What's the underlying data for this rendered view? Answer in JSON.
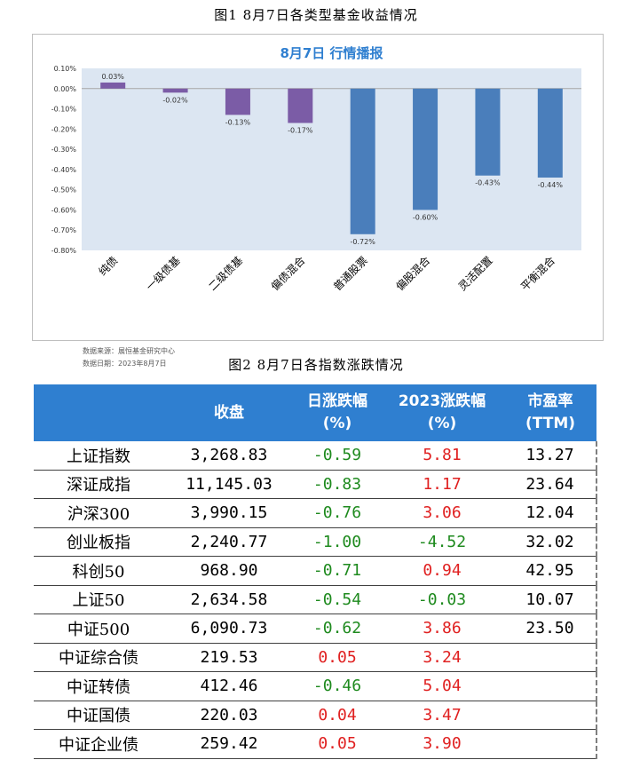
{
  "figure1": {
    "caption": "图1  8月7日各类型基金收益情况",
    "source_line1": "数据来源：展恒基金研究中心",
    "source_line2": "数据日期：2023年8月7日"
  },
  "chart_data": {
    "type": "bar",
    "title": "8月7日  行情播报",
    "categories": [
      "纯债",
      "一级债基",
      "二级债基",
      "偏债混合",
      "普通股票",
      "偏股混合",
      "灵活配置",
      "平衡混合"
    ],
    "values": [
      0.03,
      -0.02,
      -0.13,
      -0.17,
      -0.72,
      -0.6,
      -0.43,
      -0.44
    ],
    "value_labels": [
      "0.03%",
      "-0.02%",
      "-0.13%",
      "-0.17%",
      "-0.72%",
      "-0.60%",
      "-0.43%",
      "-0.44%"
    ],
    "bar_colors": [
      "#7b5ca6",
      "#7b5ca6",
      "#7b5ca6",
      "#7b5ca6",
      "#4a7ebb",
      "#4a7ebb",
      "#4a7ebb",
      "#4a7ebb"
    ],
    "ylim": [
      -0.8,
      0.1
    ],
    "yticks": [
      0.1,
      0.0,
      -0.1,
      -0.2,
      -0.3,
      -0.4,
      -0.5,
      -0.6,
      -0.7,
      -0.8
    ],
    "ytick_labels": [
      "0.10%",
      "0.00%",
      "-0.10%",
      "-0.20%",
      "-0.30%",
      "-0.40%",
      "-0.50%",
      "-0.60%",
      "-0.70%",
      "-0.80%"
    ],
    "plot_background": "#dce6f2",
    "title_color": "#2f7fd0",
    "grid": false,
    "xlabel": "",
    "ylabel": ""
  },
  "figure2": {
    "caption": "图2  8月7日各指数涨跌情况",
    "headers": {
      "close": "收盘",
      "daily_1": "日涨跌幅",
      "daily_2": "(%)",
      "ytd_1": "2023涨跌幅",
      "ytd_2": "(%)",
      "pe_1": "市盈率",
      "pe_2": "(TTM)"
    },
    "header_color": "#2f7fd0",
    "rows": [
      {
        "name": "上证指数",
        "close": "3,268.83",
        "daily": "-0.59",
        "ytd": "5.81",
        "pe": "13.27",
        "daily_sign": "neg",
        "ytd_sign": "pos"
      },
      {
        "name": "深证成指",
        "close": "11,145.03",
        "daily": "-0.83",
        "ytd": "1.17",
        "pe": "23.64",
        "daily_sign": "neg",
        "ytd_sign": "pos"
      },
      {
        "name": "沪深300",
        "close": "3,990.15",
        "daily": "-0.76",
        "ytd": "3.06",
        "pe": "12.04",
        "daily_sign": "neg",
        "ytd_sign": "pos"
      },
      {
        "name": "创业板指",
        "close": "2,240.77",
        "daily": "-1.00",
        "ytd": "-4.52",
        "pe": "32.02",
        "daily_sign": "neg",
        "ytd_sign": "neg"
      },
      {
        "name": "科创50",
        "close": "968.90",
        "daily": "-0.71",
        "ytd": "0.94",
        "pe": "42.95",
        "daily_sign": "neg",
        "ytd_sign": "pos"
      },
      {
        "name": "上证50",
        "close": "2,634.58",
        "daily": "-0.54",
        "ytd": "-0.03",
        "pe": "10.07",
        "daily_sign": "neg",
        "ytd_sign": "neg"
      },
      {
        "name": "中证500",
        "close": "6,090.73",
        "daily": "-0.62",
        "ytd": "3.86",
        "pe": "23.50",
        "daily_sign": "neg",
        "ytd_sign": "pos"
      },
      {
        "name": "中证综合债",
        "close": "219.53",
        "daily": "0.05",
        "ytd": "3.24",
        "pe": "",
        "daily_sign": "pos",
        "ytd_sign": "pos"
      },
      {
        "name": "中证转债",
        "close": "412.46",
        "daily": "-0.46",
        "ytd": "5.04",
        "pe": "",
        "daily_sign": "neg",
        "ytd_sign": "pos"
      },
      {
        "name": "中证国债",
        "close": "220.03",
        "daily": "0.04",
        "ytd": "3.47",
        "pe": "",
        "daily_sign": "pos",
        "ytd_sign": "pos"
      },
      {
        "name": "中证企业债",
        "close": "259.42",
        "daily": "0.05",
        "ytd": "3.90",
        "pe": "",
        "daily_sign": "pos",
        "ytd_sign": "pos"
      }
    ]
  }
}
